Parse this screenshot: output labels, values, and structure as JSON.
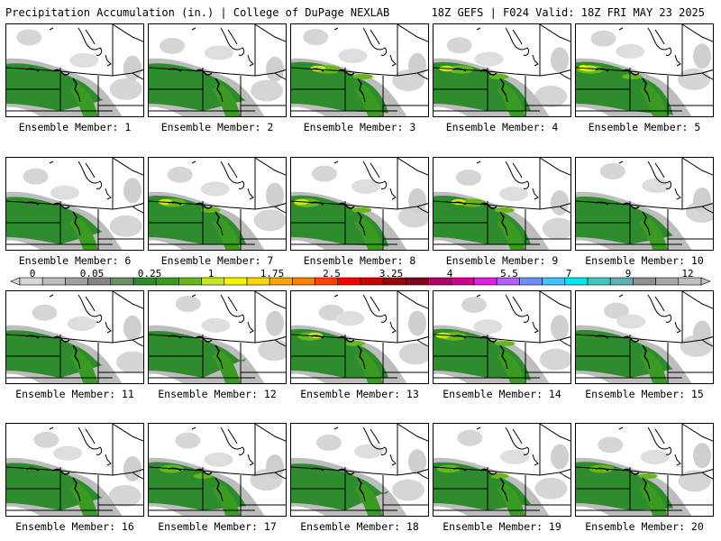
{
  "header": {
    "title": "Precipitation Accumulation (in.) | College of DuPage NEXLAB",
    "run_info": "18Z GEFS | F024 Valid: 18Z FRI MAY 23 2025"
  },
  "panels": [
    {
      "label": "Ensemble Member: 1",
      "intensity": 0.55
    },
    {
      "label": "Ensemble Member: 2",
      "intensity": 0.55
    },
    {
      "label": "Ensemble Member: 3",
      "intensity": 0.85
    },
    {
      "label": "Ensemble Member: 4",
      "intensity": 0.8
    },
    {
      "label": "Ensemble Member: 5",
      "intensity": 0.9
    },
    {
      "label": "Ensemble Member: 6",
      "intensity": 0.5
    },
    {
      "label": "Ensemble Member: 7",
      "intensity": 0.8
    },
    {
      "label": "Ensemble Member: 8",
      "intensity": 0.85
    },
    {
      "label": "Ensemble Member: 9",
      "intensity": 0.8
    },
    {
      "label": "Ensemble Member: 10",
      "intensity": 0.6
    },
    {
      "label": "Ensemble Member: 11",
      "intensity": 0.5
    },
    {
      "label": "Ensemble Member: 12",
      "intensity": 0.35
    },
    {
      "label": "Ensemble Member: 13",
      "intensity": 0.8
    },
    {
      "label": "Ensemble Member: 14",
      "intensity": 0.85
    },
    {
      "label": "Ensemble Member: 15",
      "intensity": 0.6
    },
    {
      "label": "Ensemble Member: 16",
      "intensity": 0.5
    },
    {
      "label": "Ensemble Member: 17",
      "intensity": 0.7
    },
    {
      "label": "Ensemble Member: 18",
      "intensity": 0.35
    },
    {
      "label": "Ensemble Member: 19",
      "intensity": 0.65
    },
    {
      "label": "Ensemble Member: 20",
      "intensity": 0.75
    }
  ],
  "colorbar": {
    "labels": [
      "0",
      "0.05",
      "0.25",
      "1",
      "1.75",
      "2.5",
      "3.25",
      "4",
      "5.5",
      "7",
      "9",
      "12"
    ],
    "colors": [
      "#d8d8d8",
      "#bdbdbd",
      "#a0a0a0",
      "#858585",
      "#6a8f6a",
      "#2e8b2e",
      "#3a9a22",
      "#66b81a",
      "#c8e61c",
      "#f5f500",
      "#ffd700",
      "#ffa500",
      "#ff7f00",
      "#ff4500",
      "#ff0000",
      "#cc0000",
      "#990000",
      "#800020",
      "#b0006a",
      "#d0008c",
      "#e020e0",
      "#b060ff",
      "#7090ff",
      "#40c0ff",
      "#00e5ee",
      "#40c8c0",
      "#60b0b0",
      "#909090",
      "#a8a8a8",
      "#c0c0c0"
    ]
  }
}
